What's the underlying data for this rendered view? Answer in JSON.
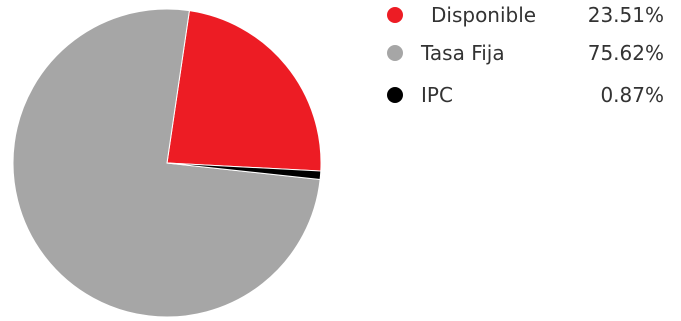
{
  "chart_data": {
    "type": "pie",
    "slices": [
      {
        "label": "Disponible",
        "value": 23.51,
        "value_text": "23.51%",
        "color": "#ed1c24"
      },
      {
        "label": "Tasa Fija",
        "value": 75.62,
        "value_text": "75.62%",
        "color": "#a6a6a6"
      },
      {
        "label": "IPC",
        "value": 0.87,
        "value_text": "0.87%",
        "color": "#000000"
      }
    ],
    "legend_position": "top-right",
    "unit": "%"
  }
}
